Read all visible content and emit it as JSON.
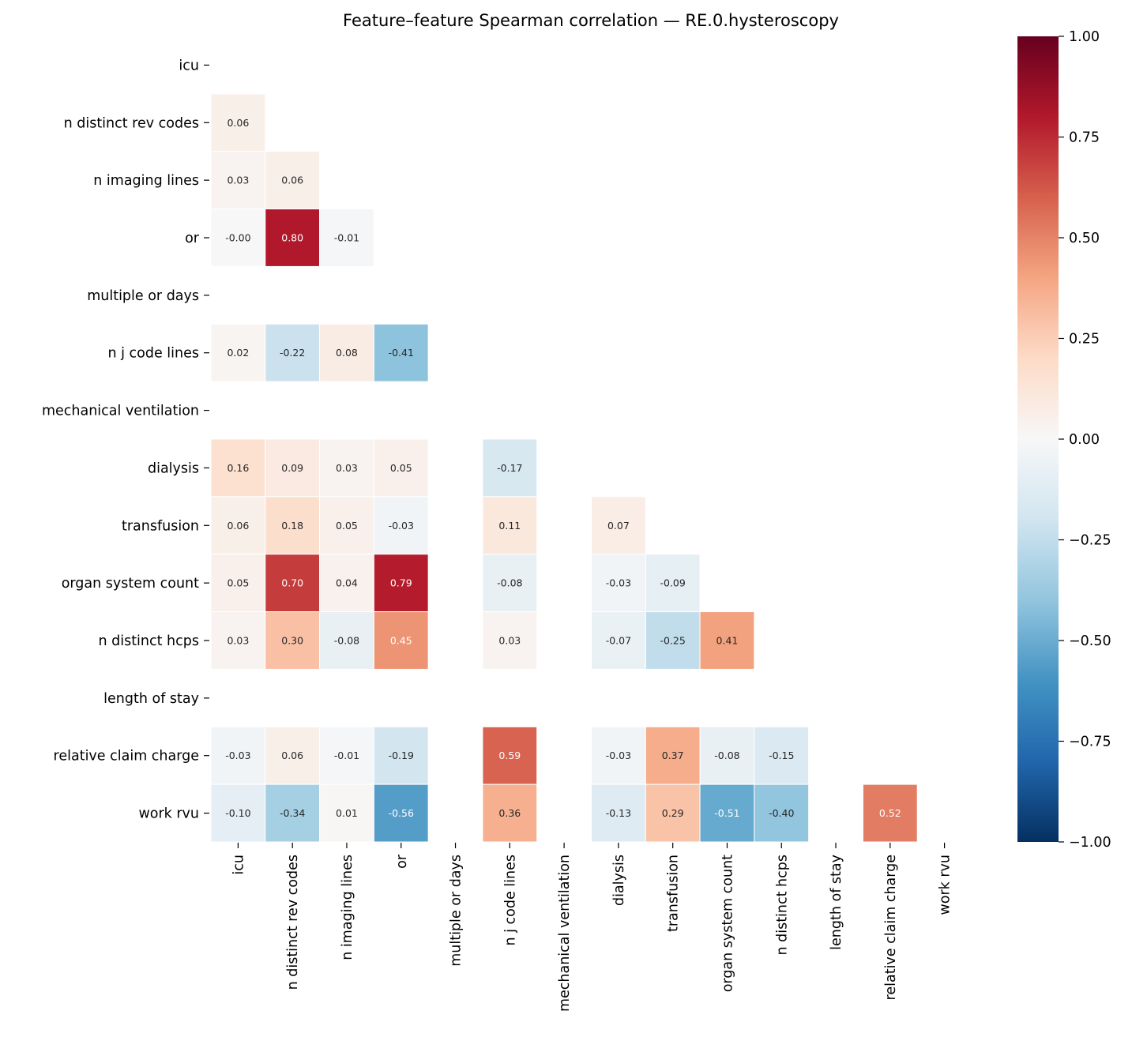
{
  "chart_data": {
    "type": "heatmap",
    "title": "Feature–feature Spearman correlation — RE.0.hysteroscopy",
    "labels": [
      "icu",
      "n distinct rev codes",
      "n imaging lines",
      "or",
      "multiple or days",
      "n j code lines",
      "mechanical ventilation",
      "dialysis",
      "transfusion",
      "organ system count",
      "n distinct hcps",
      "length of stay",
      "relative claim charge",
      "work rvu"
    ],
    "matrix_lower": [
      [],
      [
        0.06
      ],
      [
        0.03,
        0.06
      ],
      [
        -0.0,
        0.8,
        -0.01
      ],
      [
        null,
        null,
        null,
        null
      ],
      [
        0.02,
        -0.22,
        0.08,
        -0.41,
        null
      ],
      [
        null,
        null,
        null,
        null,
        null,
        null
      ],
      [
        0.16,
        0.09,
        0.03,
        0.05,
        null,
        -0.17,
        null
      ],
      [
        0.06,
        0.18,
        0.05,
        -0.03,
        null,
        0.11,
        null,
        0.07
      ],
      [
        0.05,
        0.7,
        0.04,
        0.79,
        null,
        -0.08,
        null,
        -0.03,
        -0.09
      ],
      [
        0.03,
        0.3,
        -0.08,
        0.45,
        null,
        0.03,
        null,
        -0.07,
        -0.25,
        0.41
      ],
      [
        null,
        null,
        null,
        null,
        null,
        null,
        null,
        null,
        null,
        null,
        null
      ],
      [
        -0.03,
        0.06,
        -0.01,
        -0.19,
        null,
        0.59,
        null,
        -0.03,
        0.37,
        -0.08,
        -0.15,
        null
      ],
      [
        -0.1,
        -0.34,
        0.01,
        -0.56,
        null,
        0.36,
        null,
        -0.13,
        0.29,
        -0.51,
        -0.4,
        null,
        0.52
      ]
    ],
    "colormap": "RdBu_r",
    "vlim": [
      -1,
      1
    ],
    "colorbar_ticks": [
      1.0,
      0.75,
      0.5,
      0.25,
      0.0,
      -0.25,
      -0.5,
      -0.75,
      -1.0
    ],
    "colorbar_tick_labels": [
      "1.00",
      "0.75",
      "0.50",
      "0.25",
      "0.00",
      "−0.25",
      "−0.50",
      "−0.75",
      "−1.00"
    ],
    "annotation_format": "0.00",
    "mask": "upper triangle and diagonal"
  }
}
